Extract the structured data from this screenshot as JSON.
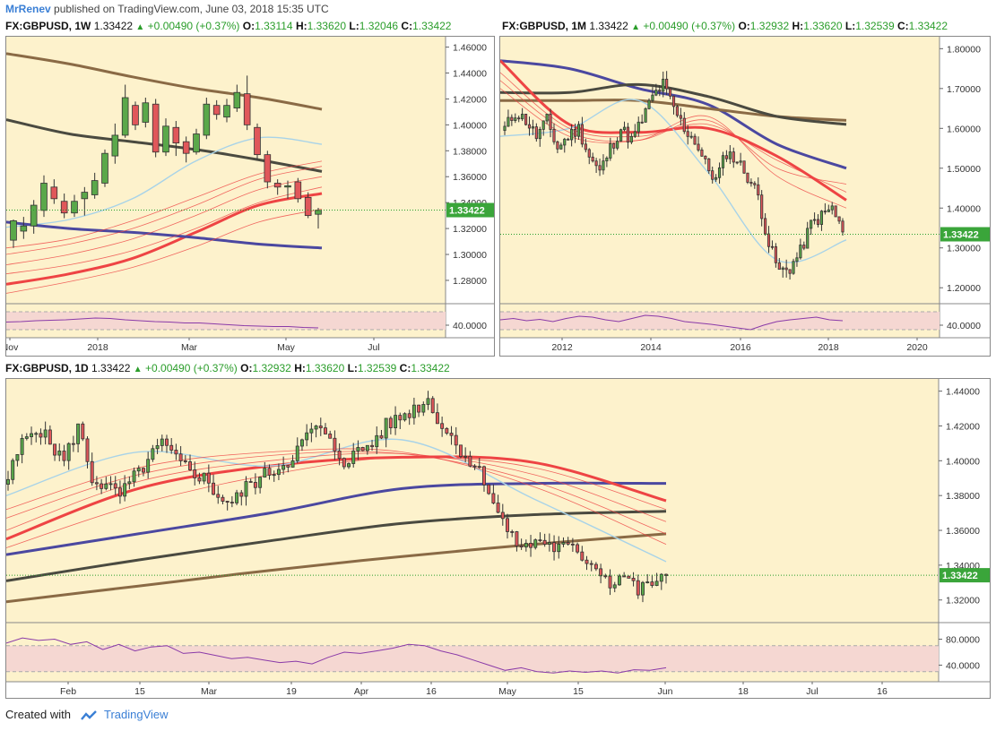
{
  "publisher": {
    "author": "MrRenev",
    "text": "published on TradingView.com, June 03, 2018 15:35 UTC"
  },
  "footer": {
    "created_with": "Created with",
    "brand": "TradingView"
  },
  "colors": {
    "background": "#fdf2cc",
    "candle_up": "#5aa84a",
    "candle_down": "#e0575a",
    "ma_blue": "#4b48a0",
    "ma_red": "#ee4444",
    "ma_brown": "#8a6a45",
    "ma_dark": "#4a4a40",
    "ma_light": "#a8d3e8",
    "rsi_band": "#f5d7d2",
    "rsi_line": "#8a3aa8",
    "last_price_line": "#2a9d2a"
  },
  "charts": [
    {
      "id": "weekly",
      "symbol": "FX:GBPUSD, 1W",
      "last": "1.33422",
      "change": "+0.00490 (+0.37%)",
      "o_label": "O:",
      "o": "1.33114",
      "h_label": "H:",
      "h": "1.33620",
      "l_label": "L:",
      "l": "1.32046",
      "c_label": "C:",
      "c": "1.33422",
      "last_badge": "1.33422",
      "rsi_tick": "40.0000"
    },
    {
      "id": "monthly",
      "symbol": "FX:GBPUSD, 1M",
      "last": "1.33422",
      "change": "+0.00490 (+0.37%)",
      "o_label": "O:",
      "o": "1.32932",
      "h_label": "H:",
      "h": "1.33620",
      "l_label": "L:",
      "l": "1.32539",
      "c_label": "C:",
      "c": "1.33422",
      "last_badge": "1.33422",
      "rsi_tick": "40.0000"
    },
    {
      "id": "daily",
      "symbol": "FX:GBPUSD, 1D",
      "last": "1.33422",
      "change": "+0.00490 (+0.37%)",
      "o_label": "O:",
      "o": "1.32932",
      "h_label": "H:",
      "h": "1.33620",
      "l_label": "L:",
      "l": "1.32539",
      "c_label": "C:",
      "c": "1.33422",
      "last_badge": "1.33422",
      "rsi_ticks": [
        "80.0000",
        "40.0000"
      ]
    }
  ],
  "chart_data": [
    {
      "type": "candlestick",
      "title": "FX:GBPUSD, 1W",
      "y_ticks": [
        1.46,
        1.44,
        1.42,
        1.4,
        1.38,
        1.36,
        1.34,
        1.32,
        1.3,
        1.28
      ],
      "y_tick_labels": [
        "1.46000",
        "1.44000",
        "1.42000",
        "1.40000",
        "1.38000",
        "1.36000",
        "1.34000",
        "1.32000",
        "1.30000",
        "1.28000"
      ],
      "ylim": [
        1.262,
        1.468
      ],
      "x_labels": [
        "Nov",
        "2018",
        "Mar",
        "May",
        "Jul"
      ],
      "last_price": 1.33422,
      "candles": [
        [
          1.311,
          1.326,
          1.305,
          1.327
        ],
        [
          1.318,
          1.322,
          1.312,
          1.329
        ],
        [
          1.322,
          1.338,
          1.316,
          1.342
        ],
        [
          1.334,
          1.355,
          1.329,
          1.361
        ],
        [
          1.352,
          1.343,
          1.339,
          1.358
        ],
        [
          1.341,
          1.332,
          1.328,
          1.347
        ],
        [
          1.332,
          1.341,
          1.329,
          1.346
        ],
        [
          1.343,
          1.348,
          1.33,
          1.352
        ],
        [
          1.346,
          1.357,
          1.343,
          1.363
        ],
        [
          1.355,
          1.378,
          1.352,
          1.381
        ],
        [
          1.376,
          1.392,
          1.37,
          1.401
        ],
        [
          1.392,
          1.421,
          1.39,
          1.431
        ],
        [
          1.415,
          1.4,
          1.396,
          1.418
        ],
        [
          1.402,
          1.417,
          1.398,
          1.421
        ],
        [
          1.416,
          1.379,
          1.375,
          1.42
        ],
        [
          1.379,
          1.399,
          1.376,
          1.405
        ],
        [
          1.398,
          1.386,
          1.376,
          1.403
        ],
        [
          1.387,
          1.378,
          1.371,
          1.391
        ],
        [
          1.379,
          1.393,
          1.377,
          1.397
        ],
        [
          1.392,
          1.416,
          1.389,
          1.421
        ],
        [
          1.415,
          1.408,
          1.404,
          1.419
        ],
        [
          1.406,
          1.415,
          1.402,
          1.42
        ],
        [
          1.413,
          1.425,
          1.41,
          1.431
        ],
        [
          1.424,
          1.4,
          1.396,
          1.438
        ],
        [
          1.398,
          1.377,
          1.373,
          1.401
        ],
        [
          1.377,
          1.356,
          1.351,
          1.38
        ],
        [
          1.355,
          1.352,
          1.346,
          1.358
        ],
        [
          1.352,
          1.353,
          1.343,
          1.357
        ],
        [
          1.356,
          1.343,
          1.34,
          1.359
        ],
        [
          1.344,
          1.33,
          1.328,
          1.348
        ],
        [
          1.331,
          1.334,
          1.32,
          1.336
        ]
      ],
      "moving_averages": [
        {
          "name": "MA brown",
          "color": "#8a6a45",
          "values": [
            1.455,
            1.447,
            1.437,
            1.428,
            1.421,
            1.412
          ]
        },
        {
          "name": "MA dark",
          "color": "#4a4a40",
          "values": [
            1.404,
            1.393,
            1.387,
            1.381,
            1.373,
            1.364
          ]
        },
        {
          "name": "MA light",
          "color": "#a8d3e8",
          "values": [
            1.321,
            1.327,
            1.343,
            1.372,
            1.39,
            1.385
          ]
        },
        {
          "name": "MA red",
          "color": "#ee4444",
          "values": [
            1.277,
            1.285,
            1.297,
            1.317,
            1.338,
            1.347
          ]
        },
        {
          "name": "MA blue",
          "color": "#4b48a0",
          "values": [
            1.325,
            1.32,
            1.317,
            1.313,
            1.308,
            1.305
          ]
        }
      ],
      "rsi": {
        "band": [
          30,
          70
        ],
        "tick": 40,
        "values": [
          47,
          48,
          50,
          51,
          52,
          54,
          56,
          55,
          52,
          50,
          48,
          47,
          45,
          45,
          43,
          41,
          39,
          38,
          37,
          37,
          35,
          34
        ]
      }
    },
    {
      "type": "candlestick",
      "title": "FX:GBPUSD, 1M",
      "y_ticks": [
        1.8,
        1.7,
        1.6,
        1.5,
        1.4,
        1.3,
        1.2
      ],
      "y_tick_labels": [
        "1.80000",
        "1.70000",
        "1.60000",
        "1.50000",
        "1.40000",
        "1.30000",
        "1.20000"
      ],
      "ylim": [
        1.16,
        1.83
      ],
      "x_labels": [
        "2012",
        "2014",
        "2016",
        "2018",
        "2020"
      ],
      "last_price": 1.33422,
      "close_path": [
        1.6,
        1.64,
        1.62,
        1.58,
        1.62,
        1.55,
        1.58,
        1.6,
        1.53,
        1.49,
        1.55,
        1.6,
        1.57,
        1.62,
        1.68,
        1.71,
        1.65,
        1.6,
        1.57,
        1.51,
        1.47,
        1.54,
        1.52,
        1.48,
        1.43,
        1.31,
        1.24,
        1.25,
        1.29,
        1.36,
        1.38,
        1.4,
        1.34
      ],
      "moving_averages": [
        {
          "name": "MA blue",
          "color": "#4b48a0",
          "values": [
            1.77,
            1.75,
            1.7,
            1.66,
            1.56,
            1.5
          ]
        },
        {
          "name": "MA brown",
          "color": "#8a6a45",
          "values": [
            1.67,
            1.67,
            1.67,
            1.65,
            1.63,
            1.62
          ]
        },
        {
          "name": "MA dark",
          "color": "#4a4a40",
          "values": [
            1.69,
            1.69,
            1.71,
            1.68,
            1.63,
            1.61
          ]
        },
        {
          "name": "MA red",
          "color": "#ee4444",
          "values": [
            1.77,
            1.61,
            1.59,
            1.6,
            1.53,
            1.42
          ]
        },
        {
          "name": "MA light",
          "color": "#a8d3e8",
          "values": [
            1.58,
            1.6,
            1.67,
            1.49,
            1.27,
            1.32
          ]
        }
      ],
      "rsi": {
        "band": [
          30,
          70
        ],
        "tick": 40,
        "values": [
          52,
          55,
          50,
          53,
          48,
          55,
          60,
          58,
          52,
          48,
          55,
          62,
          60,
          55,
          48,
          45,
          42,
          38,
          34,
          30,
          40,
          48,
          52,
          55,
          58,
          52,
          50
        ]
      }
    },
    {
      "type": "candlestick",
      "title": "FX:GBPUSD, 1D",
      "y_ticks": [
        1.44,
        1.42,
        1.4,
        1.38,
        1.36,
        1.34,
        1.32
      ],
      "y_tick_labels": [
        "1.44000",
        "1.42000",
        "1.40000",
        "1.38000",
        "1.36000",
        "1.34000",
        "1.32000"
      ],
      "ylim": [
        1.307,
        1.447
      ],
      "x_labels": [
        "Feb",
        "15",
        "Mar",
        "19",
        "Apr",
        "16",
        "May",
        "15",
        "Jun",
        "18",
        "Jul",
        "16"
      ],
      "last_price": 1.33422,
      "close_path": [
        1.39,
        1.41,
        1.42,
        1.41,
        1.4,
        1.42,
        1.39,
        1.385,
        1.38,
        1.39,
        1.4,
        1.41,
        1.4,
        1.395,
        1.39,
        1.38,
        1.375,
        1.385,
        1.39,
        1.395,
        1.4,
        1.41,
        1.42,
        1.41,
        1.4,
        1.405,
        1.41,
        1.42,
        1.425,
        1.43,
        1.435,
        1.42,
        1.41,
        1.4,
        1.39,
        1.37,
        1.355,
        1.35,
        1.355,
        1.35,
        1.35,
        1.345,
        1.34,
        1.33,
        1.335,
        1.325,
        1.33,
        1.334
      ],
      "moving_averages": [
        {
          "name": "MA brown",
          "color": "#8a6a45",
          "values": [
            1.319,
            1.328,
            1.337,
            1.345,
            1.352,
            1.358
          ]
        },
        {
          "name": "MA dark",
          "color": "#4a4a40",
          "values": [
            1.331,
            1.343,
            1.354,
            1.364,
            1.369,
            1.371
          ]
        },
        {
          "name": "MA blue",
          "color": "#4b48a0",
          "values": [
            1.346,
            1.358,
            1.37,
            1.384,
            1.387,
            1.387
          ]
        },
        {
          "name": "MA red",
          "color": "#ee4444",
          "values": [
            1.355,
            1.384,
            1.397,
            1.402,
            1.399,
            1.377
          ]
        },
        {
          "name": "MA light",
          "color": "#a8d3e8",
          "values": [
            1.38,
            1.405,
            1.397,
            1.412,
            1.378,
            1.342
          ]
        }
      ],
      "rsi": {
        "band": [
          30,
          70
        ],
        "ticks": [
          80,
          40
        ],
        "values": [
          74,
          82,
          78,
          80,
          72,
          76,
          64,
          72,
          62,
          68,
          70,
          58,
          60,
          55,
          50,
          52,
          48,
          44,
          46,
          42,
          52,
          60,
          58,
          62,
          66,
          72,
          70,
          62,
          56,
          48,
          40,
          32,
          36,
          30,
          28,
          31,
          29,
          31,
          28,
          33,
          32,
          36
        ]
      }
    }
  ]
}
